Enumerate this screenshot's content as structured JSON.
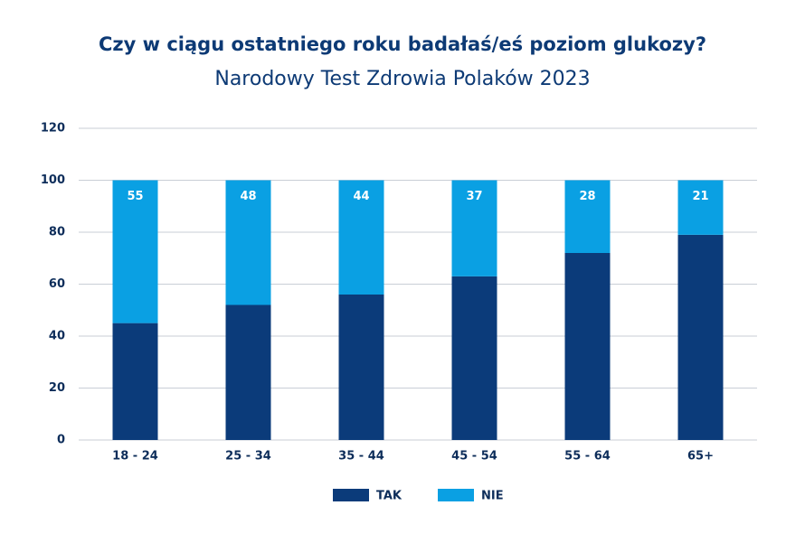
{
  "chart_data": {
    "type": "stacked_bar",
    "title": "Czy w ciągu ostatniego roku badałaś/eś poziom glukozy?",
    "subtitle": "Narodowy Test Zdrowia Polaków 2023",
    "categories": [
      "18 - 24",
      "25 - 34",
      "35 - 44",
      "45 - 54",
      "55 - 64",
      "65+"
    ],
    "series": [
      {
        "name": "TAK",
        "color": "#0b3b7a",
        "values": [
          45,
          52,
          56,
          63,
          72,
          79
        ],
        "show_values": false
      },
      {
        "name": "NIE",
        "color": "#0aa0e3",
        "values": [
          55,
          48,
          44,
          37,
          28,
          21
        ],
        "show_values": true
      }
    ],
    "ylim": [
      0,
      120
    ],
    "yticks": [
      0,
      20,
      40,
      60,
      80,
      100,
      120
    ],
    "grid": true,
    "legend": "bottom"
  }
}
